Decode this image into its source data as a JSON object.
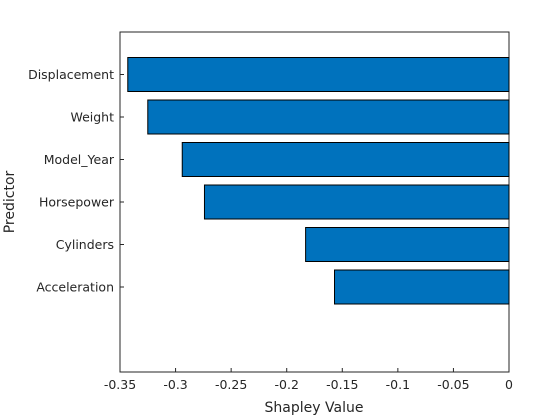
{
  "chart_data": {
    "type": "bar",
    "orientation": "horizontal",
    "title": "",
    "xlabel": "Shapley Value",
    "ylabel": "Predictor",
    "categories": [
      "Displacement",
      "Weight",
      "Model_Year",
      "Horsepower",
      "Cylinders",
      "Acceleration"
    ],
    "values": [
      -0.343,
      -0.325,
      -0.294,
      -0.274,
      -0.183,
      -0.157
    ],
    "xlim": [
      -0.35,
      0
    ],
    "xticks": [
      -0.35,
      -0.3,
      -0.25,
      -0.2,
      -0.15,
      -0.1,
      -0.05,
      0
    ],
    "xtick_labels": [
      "-0.35",
      "-0.3",
      "-0.25",
      "-0.2",
      "-0.15",
      "-0.1",
      "-0.05",
      "0"
    ],
    "bar_color": "#0072BD",
    "grid": false,
    "legend": "none"
  }
}
